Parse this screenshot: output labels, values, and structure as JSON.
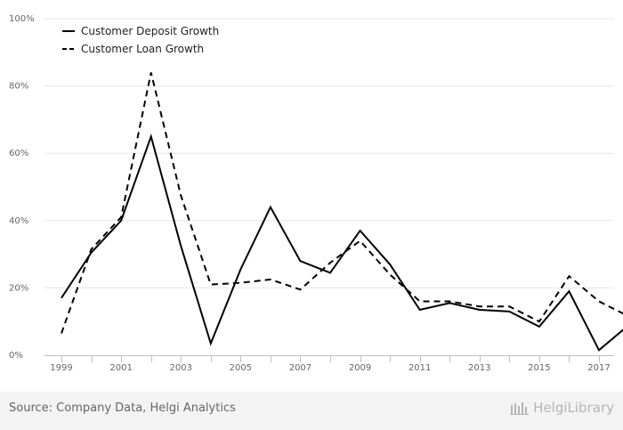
{
  "chart_data": {
    "type": "line",
    "x": [
      1999,
      2000,
      2001,
      2002,
      2003,
      2004,
      2005,
      2006,
      2007,
      2008,
      2009,
      2010,
      2011,
      2012,
      2013,
      2014,
      2015,
      2016,
      2017,
      2018
    ],
    "x_ticks": [
      "1999",
      "2001",
      "2003",
      "2005",
      "2007",
      "2009",
      "2011",
      "2013",
      "2015",
      "2017"
    ],
    "y_ticks": [
      "0%",
      "20%",
      "40%",
      "60%",
      "80%",
      "100%"
    ],
    "ylim": [
      0,
      100
    ],
    "grid": true,
    "legend_position": "top-left",
    "series": [
      {
        "name": "Customer Deposit Growth",
        "dash": "solid",
        "color": "#000000",
        "values": [
          17,
          30.5,
          40,
          65,
          32.5,
          3.5,
          25.5,
          44,
          28,
          24.5,
          37,
          27,
          13.5,
          15.5,
          13.5,
          13,
          8.5,
          19,
          1.5,
          9
        ]
      },
      {
        "name": "Customer Loan Growth",
        "dash": "dashed",
        "color": "#000000",
        "values": [
          6.5,
          31.5,
          41,
          84,
          47.5,
          21,
          21.5,
          22.5,
          19.5,
          27.5,
          34,
          24,
          16,
          16,
          14.5,
          14.5,
          10,
          23.5,
          16,
          11.5
        ]
      }
    ]
  },
  "footer": {
    "source": "Source: Company Data, Helgi Analytics",
    "brand": "HelgiLibrary"
  }
}
